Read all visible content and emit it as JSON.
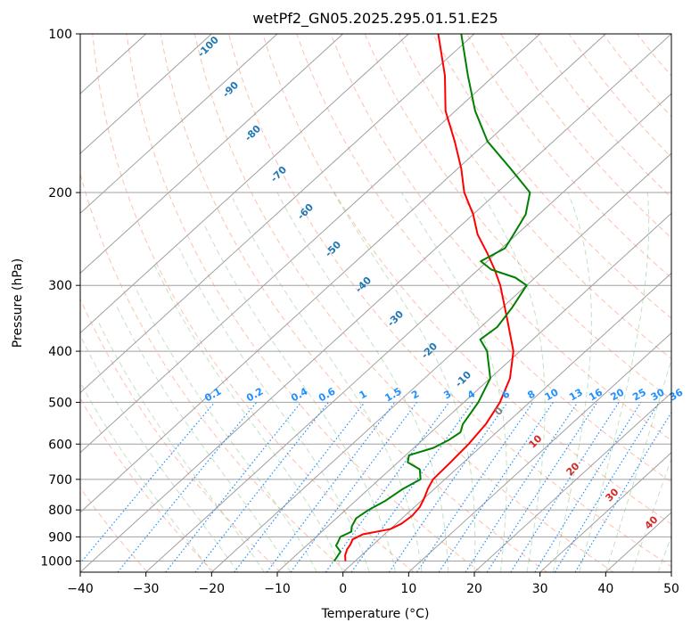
{
  "chart_data": {
    "type": "line",
    "title": "wetPf2_GN05.2025.295.01.51.E25",
    "xlabel": "Temperature (°C)",
    "ylabel": "Pressure (hPa)",
    "xlim": [
      -40,
      50
    ],
    "ylim": [
      1050,
      100
    ],
    "y_scale": "log",
    "x_ticks": [
      "−40",
      "−30",
      "−20",
      "−10",
      "0",
      "10",
      "20",
      "30",
      "40",
      "50"
    ],
    "y_ticks": [
      "1000",
      "900",
      "800",
      "700",
      "600",
      "500",
      "400",
      "300",
      "200",
      "100"
    ],
    "grid": true,
    "colors": {
      "temperature": "#ff0000",
      "dewpoint": "#008000",
      "dry_adiabat_label": "#1f77b4",
      "mixing_ratio": "#1e90ff",
      "moist_adiabat_label": "#d62728"
    },
    "series": [
      {
        "role": "temperature",
        "points": [
          [
            1000,
            -1.5
          ],
          [
            975,
            -2.5
          ],
          [
            950,
            -3.2
          ],
          [
            930,
            -3.5
          ],
          [
            910,
            -4.0
          ],
          [
            890,
            -3.3
          ],
          [
            870,
            0.0
          ],
          [
            850,
            0.8
          ],
          [
            820,
            1.1
          ],
          [
            790,
            0.8
          ],
          [
            760,
            0.0
          ],
          [
            730,
            -1.0
          ],
          [
            700,
            -1.8
          ],
          [
            650,
            -2.0
          ],
          [
            600,
            -2.3
          ],
          [
            550,
            -3.0
          ],
          [
            500,
            -4.5
          ],
          [
            450,
            -7.0
          ],
          [
            400,
            -11.0
          ],
          [
            350,
            -17.0
          ],
          [
            300,
            -24.0
          ],
          [
            280,
            -27.5
          ],
          [
            260,
            -31.5
          ],
          [
            240,
            -36.0
          ],
          [
            220,
            -40.0
          ],
          [
            200,
            -45.0
          ],
          [
            180,
            -49.5
          ],
          [
            160,
            -55.0
          ],
          [
            140,
            -61.5
          ],
          [
            120,
            -67.5
          ],
          [
            100,
            -75.5
          ]
        ]
      },
      {
        "role": "dewpoint",
        "points": [
          [
            1000,
            -3.2
          ],
          [
            960,
            -3.8
          ],
          [
            935,
            -5.5
          ],
          [
            920,
            -5.8
          ],
          [
            900,
            -6.3
          ],
          [
            880,
            -5.5
          ],
          [
            860,
            -6.3
          ],
          [
            830,
            -7.0
          ],
          [
            800,
            -6.5
          ],
          [
            770,
            -5.5
          ],
          [
            730,
            -4.8
          ],
          [
            700,
            -3.7
          ],
          [
            670,
            -5.5
          ],
          [
            650,
            -8.5
          ],
          [
            630,
            -9.5
          ],
          [
            610,
            -7.0
          ],
          [
            590,
            -6.0
          ],
          [
            570,
            -5.5
          ],
          [
            550,
            -6.5
          ],
          [
            500,
            -7.8
          ],
          [
            450,
            -10.0
          ],
          [
            400,
            -15.0
          ],
          [
            380,
            -18.0
          ],
          [
            360,
            -17.5
          ],
          [
            330,
            -18.5
          ],
          [
            300,
            -20.0
          ],
          [
            290,
            -23.0
          ],
          [
            280,
            -28.0
          ],
          [
            270,
            -31.0
          ],
          [
            255,
            -29.5
          ],
          [
            240,
            -30.5
          ],
          [
            220,
            -32.0
          ],
          [
            200,
            -35.0
          ],
          [
            180,
            -42.0
          ],
          [
            160,
            -50.0
          ],
          [
            140,
            -57.0
          ],
          [
            120,
            -64.0
          ],
          [
            100,
            -72.0
          ]
        ]
      }
    ],
    "dry_adiabat_labels": [
      "-100",
      "-90",
      "-80",
      "-70",
      "-60",
      "-50",
      "-40",
      "-30",
      "-20",
      "-10",
      "0"
    ],
    "mixing_ratio_labels": [
      "0.1",
      "0.2",
      "0.4",
      "0.6",
      "1",
      "1.5",
      "2",
      "3",
      "4",
      "6",
      "8",
      "10",
      "13",
      "16",
      "20",
      "25",
      "30",
      "36"
    ],
    "moist_adiabat_labels": [
      "10",
      "20",
      "30",
      "40"
    ]
  }
}
